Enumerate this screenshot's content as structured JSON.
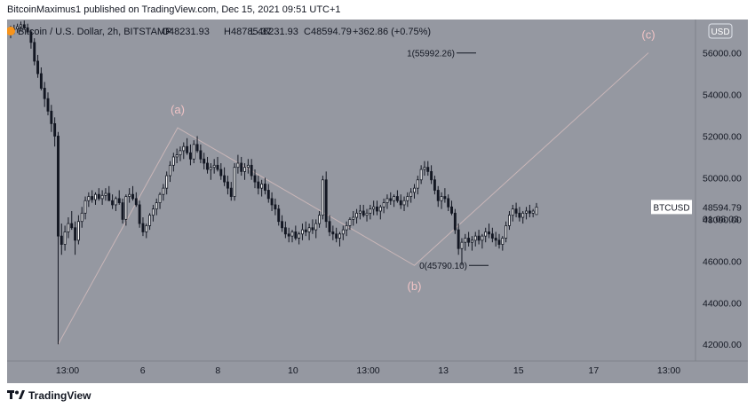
{
  "header": {
    "published": "BitcoinMaximus1 published on TradingView.com, Dec 15, 2021 09:51 UTC+1"
  },
  "legend": {
    "symbol": "Bitcoin / U.S. Dollar, 2h, BITSTAMP",
    "o_label": "O",
    "o_value": "48231.93",
    "h_label": "H",
    "h_value": "48785.37",
    "l_label": "L",
    "l_value": "48231.93",
    "c_label": "C",
    "c_value": "48594.79",
    "change": "+362.86 (+0.75%)"
  },
  "currency_button": "USD",
  "price_tag": {
    "symbol": "BTCUSD",
    "price": "48594.79",
    "countdown": "01:08:03"
  },
  "footer": {
    "brand": "TradingView"
  },
  "colors": {
    "background": "#9598a1",
    "candle": "#131722",
    "wave_line": "#c9b6b8",
    "wave_label": "#f0c3c5",
    "price_tag_bg": "#ffffff"
  },
  "chart_data": {
    "type": "candlestick",
    "y_axis": {
      "labels": [
        "56000.00",
        "54000.00",
        "52000.00",
        "50000.00",
        "48000.00",
        "46000.00",
        "44000.00",
        "42000.00"
      ],
      "range": [
        41200,
        57600
      ]
    },
    "x_axis": {
      "labels": [
        "13:00",
        "6",
        "8",
        "10",
        "13:00",
        "13",
        "15",
        "17",
        "13:00"
      ]
    },
    "wave_points": [
      {
        "label": "",
        "date": "Dec 4 20:00",
        "price": 42000
      },
      {
        "label": "(a)",
        "date": "Dec 6 18:00",
        "price": 52400
      },
      {
        "label": "(b)",
        "date": "Dec 13 21:00",
        "price": 45790
      },
      {
        "label": "(c)",
        "date": "Dec 18 18:00",
        "price": 56000
      }
    ],
    "fib_levels": [
      {
        "label": "1(55992.26)",
        "price": 55992.26
      },
      {
        "label": "0(45790.10)",
        "price": 45790.1
      }
    ],
    "candles": [
      [
        57000,
        57300,
        56700,
        57100
      ],
      [
        57100,
        57350,
        56900,
        57150
      ],
      [
        57150,
        57400,
        56950,
        57250
      ],
      [
        57250,
        57500,
        57050,
        57350
      ],
      [
        57350,
        57550,
        57100,
        57200
      ],
      [
        57200,
        57400,
        56900,
        57000
      ],
      [
        57000,
        57100,
        56200,
        56500
      ],
      [
        56500,
        56700,
        55400,
        55600
      ],
      [
        55600,
        55900,
        54800,
        55000
      ],
      [
        55000,
        55300,
        54200,
        54300
      ],
      [
        54300,
        54600,
        53400,
        53800
      ],
      [
        53800,
        54100,
        53000,
        53200
      ],
      [
        53200,
        53500,
        52200,
        52600
      ],
      [
        52600,
        52900,
        51500,
        52000
      ],
      [
        52000,
        52200,
        42000,
        47200
      ],
      [
        47200,
        47800,
        46300,
        46800
      ],
      [
        46800,
        47700,
        46500,
        47400
      ],
      [
        47400,
        48100,
        47100,
        47800
      ],
      [
        47800,
        48400,
        47500,
        47600
      ],
      [
        47600,
        47900,
        46300,
        47000
      ],
      [
        47000,
        48200,
        46800,
        47900
      ],
      [
        47900,
        48600,
        47600,
        48300
      ],
      [
        48300,
        49100,
        48000,
        48900
      ],
      [
        48900,
        49300,
        48600,
        49100
      ],
      [
        49100,
        49400,
        48800,
        48950
      ],
      [
        48950,
        49300,
        48700,
        49200
      ],
      [
        49200,
        49500,
        48900,
        49000
      ],
      [
        49000,
        49400,
        48700,
        49150
      ],
      [
        49150,
        49500,
        48900,
        49250
      ],
      [
        49250,
        49600,
        49000,
        48900
      ],
      [
        48900,
        49200,
        48500,
        48700
      ],
      [
        48700,
        49100,
        48400,
        49000
      ],
      [
        49000,
        49400,
        48700,
        48800
      ],
      [
        48800,
        49000,
        47800,
        48000
      ],
      [
        48000,
        49200,
        47700,
        49100
      ],
      [
        49100,
        49500,
        48800,
        49200
      ],
      [
        49200,
        49600,
        48900,
        49000
      ],
      [
        49000,
        49300,
        48600,
        48700
      ],
      [
        48700,
        48900,
        47600,
        47800
      ],
      [
        47800,
        48100,
        47200,
        47400
      ],
      [
        47400,
        47800,
        47100,
        47700
      ],
      [
        47700,
        48300,
        47500,
        48200
      ],
      [
        48200,
        48700,
        47900,
        48500
      ],
      [
        48500,
        49000,
        48200,
        48800
      ],
      [
        48800,
        49300,
        48500,
        49200
      ],
      [
        49200,
        49700,
        48900,
        49500
      ],
      [
        49500,
        50300,
        49200,
        50100
      ],
      [
        50100,
        50800,
        49800,
        50600
      ],
      [
        50600,
        51200,
        50300,
        51000
      ],
      [
        51000,
        51400,
        50700,
        51100
      ],
      [
        51100,
        51500,
        50800,
        51300
      ],
      [
        51300,
        51700,
        50900,
        51500
      ],
      [
        51500,
        51900,
        51100,
        51200
      ],
      [
        51200,
        51600,
        50600,
        50900
      ],
      [
        50900,
        51800,
        50700,
        51600
      ],
      [
        51600,
        52000,
        51200,
        51300
      ],
      [
        51300,
        51600,
        50700,
        50900
      ],
      [
        50900,
        51200,
        50400,
        50700
      ],
      [
        50700,
        51000,
        50200,
        50400
      ],
      [
        50400,
        50700,
        49900,
        50500
      ],
      [
        50500,
        50900,
        50200,
        50600
      ],
      [
        50600,
        51000,
        50300,
        50400
      ],
      [
        50400,
        50700,
        49900,
        50100
      ],
      [
        50100,
        50500,
        49600,
        49800
      ],
      [
        49800,
        50100,
        49200,
        49500
      ],
      [
        49500,
        49800,
        48900,
        49100
      ],
      [
        49100,
        50700,
        48900,
        50500
      ],
      [
        50500,
        51100,
        50200,
        50700
      ],
      [
        50700,
        51000,
        50100,
        50300
      ],
      [
        50300,
        50700,
        49900,
        50500
      ],
      [
        50500,
        50900,
        50200,
        50600
      ],
      [
        50600,
        50900,
        49900,
        50100
      ],
      [
        50100,
        50400,
        49500,
        49800
      ],
      [
        49800,
        50100,
        49200,
        49500
      ],
      [
        49500,
        49900,
        49100,
        49700
      ],
      [
        49700,
        50000,
        49200,
        49400
      ],
      [
        49400,
        49700,
        48800,
        49000
      ],
      [
        49000,
        49300,
        48400,
        48700
      ],
      [
        48700,
        49000,
        48200,
        48500
      ],
      [
        48500,
        48700,
        47700,
        47900
      ],
      [
        47900,
        48200,
        47400,
        47600
      ],
      [
        47600,
        47900,
        47100,
        47300
      ],
      [
        47300,
        47600,
        46900,
        47200
      ],
      [
        47200,
        47500,
        46900,
        47400
      ],
      [
        47400,
        47700,
        47000,
        47100
      ],
      [
        47100,
        47400,
        46800,
        47300
      ],
      [
        47300,
        47800,
        47000,
        47500
      ],
      [
        47500,
        47900,
        47200,
        47400
      ],
      [
        47400,
        47800,
        47000,
        47600
      ],
      [
        47600,
        48000,
        47300,
        47500
      ],
      [
        47500,
        48000,
        47100,
        47800
      ],
      [
        47800,
        48400,
        47600,
        48200
      ],
      [
        48200,
        50100,
        48000,
        49900
      ],
      [
        49900,
        50300,
        47600,
        47900
      ],
      [
        47900,
        48200,
        47200,
        47400
      ],
      [
        47400,
        47700,
        47000,
        47300
      ],
      [
        47300,
        47600,
        46900,
        47100
      ],
      [
        47100,
        47400,
        46700,
        47300
      ],
      [
        47300,
        47700,
        47000,
        47500
      ],
      [
        47500,
        47900,
        47200,
        47700
      ],
      [
        47700,
        48100,
        47500,
        48000
      ],
      [
        48000,
        48400,
        47700,
        48100
      ],
      [
        48100,
        48500,
        47800,
        48300
      ],
      [
        48300,
        48700,
        48000,
        48400
      ],
      [
        48400,
        48700,
        48100,
        48200
      ],
      [
        48200,
        48500,
        47900,
        48300
      ],
      [
        48300,
        48700,
        48000,
        48500
      ],
      [
        48500,
        48900,
        48200,
        48600
      ],
      [
        48600,
        48900,
        48200,
        48400
      ],
      [
        48400,
        48700,
        48000,
        48600
      ],
      [
        48600,
        49000,
        48300,
        48800
      ],
      [
        48800,
        49200,
        48500,
        49000
      ],
      [
        49000,
        49300,
        48700,
        48900
      ],
      [
        48900,
        49200,
        48600,
        49100
      ],
      [
        49100,
        49400,
        48800,
        48900
      ],
      [
        48900,
        49200,
        48500,
        48700
      ],
      [
        48700,
        49100,
        48400,
        48900
      ],
      [
        48900,
        49300,
        48600,
        49100
      ],
      [
        49100,
        49500,
        48800,
        49300
      ],
      [
        49300,
        49700,
        49000,
        49500
      ],
      [
        49500,
        50100,
        49200,
        49900
      ],
      [
        49900,
        50600,
        49700,
        50400
      ],
      [
        50400,
        50800,
        50100,
        50500
      ],
      [
        50500,
        50800,
        50100,
        50300
      ],
      [
        50300,
        50600,
        49700,
        49900
      ],
      [
        49900,
        50100,
        49200,
        49400
      ],
      [
        49400,
        49600,
        48600,
        48900
      ],
      [
        48900,
        49300,
        48500,
        49100
      ],
      [
        49100,
        49500,
        48800,
        49000
      ],
      [
        49000,
        49200,
        48400,
        48600
      ],
      [
        48600,
        48900,
        48200,
        48300
      ],
      [
        48300,
        48500,
        47300,
        47500
      ],
      [
        47500,
        47800,
        46300,
        46600
      ],
      [
        46600,
        47100,
        45790,
        46900
      ],
      [
        46900,
        47300,
        46500,
        47100
      ],
      [
        47100,
        47400,
        46700,
        46900
      ],
      [
        46900,
        47200,
        46500,
        47000
      ],
      [
        47000,
        47400,
        46700,
        47200
      ],
      [
        47200,
        47500,
        46800,
        47000
      ],
      [
        47000,
        47300,
        46600,
        47200
      ],
      [
        47200,
        47600,
        46900,
        47400
      ],
      [
        47400,
        47800,
        47100,
        47300
      ],
      [
        47300,
        47600,
        46900,
        47100
      ],
      [
        47100,
        47400,
        46700,
        47000
      ],
      [
        47000,
        47300,
        46600,
        46800
      ],
      [
        46800,
        47200,
        46500,
        47100
      ],
      [
        47100,
        47900,
        46900,
        47700
      ],
      [
        47700,
        48400,
        47500,
        48200
      ],
      [
        48200,
        48700,
        47900,
        48500
      ],
      [
        48500,
        48800,
        48100,
        48300
      ],
      [
        48300,
        48600,
        47900,
        48100
      ],
      [
        48100,
        48400,
        47800,
        48300
      ],
      [
        48300,
        48600,
        48000,
        48400
      ],
      [
        48400,
        48700,
        48100,
        48300
      ],
      [
        48300,
        48500,
        48100,
        48400
      ],
      [
        48231.93,
        48785.37,
        48231.93,
        48594.79
      ]
    ]
  }
}
